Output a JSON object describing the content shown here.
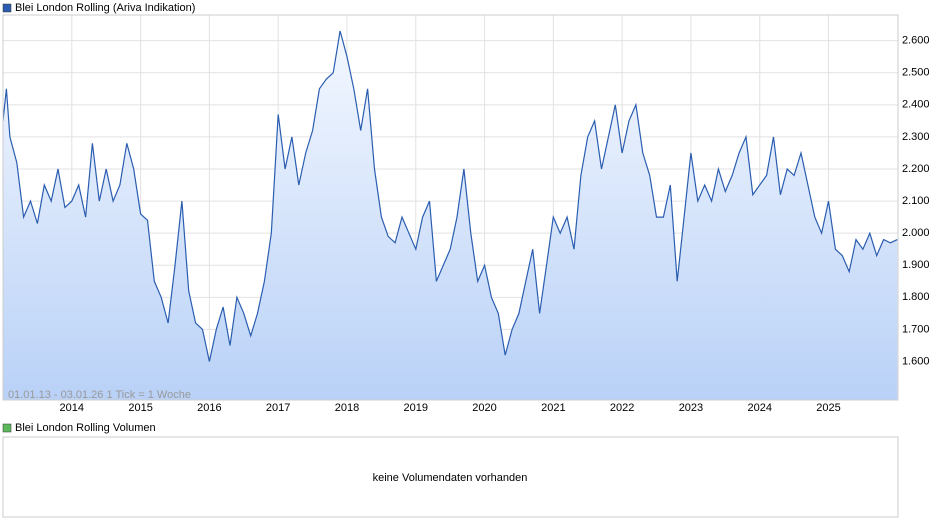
{
  "chart_data": {
    "type": "line",
    "title": "Blei London Rolling (Ariva Indikation)",
    "annotation": "01.01.13 - 03.01.26   1 Tick = 1 Woche",
    "volume_title": "Blei London Rolling Volumen",
    "volume_note": "keine Volumendaten vorhanden",
    "xlim": [
      2013,
      2026.01
    ],
    "xticks": [
      2014,
      2015,
      2016,
      2017,
      2018,
      2019,
      2020,
      2021,
      2022,
      2023,
      2024,
      2025
    ],
    "ylim": [
      1.48,
      2.68
    ],
    "yticks": [
      {
        "value": 1.6,
        "label": "1.600"
      },
      {
        "value": 1.7,
        "label": "1.700"
      },
      {
        "value": 1.8,
        "label": "1.800"
      },
      {
        "value": 1.9,
        "label": "1.900"
      },
      {
        "value": 2.0,
        "label": "2.000"
      },
      {
        "value": 2.1,
        "label": "2.100"
      },
      {
        "value": 2.2,
        "label": "2.200"
      },
      {
        "value": 2.3,
        "label": "2.300"
      },
      {
        "value": 2.4,
        "label": "2.400"
      },
      {
        "value": 2.5,
        "label": "2.500"
      },
      {
        "value": 2.6,
        "label": "2.600"
      }
    ],
    "grid": true,
    "series": [
      {
        "name": "Blei London Rolling (Ariva Indikation)",
        "color": "#2a5db0",
        "x": [
          2013.0,
          2013.05,
          2013.1,
          2013.2,
          2013.3,
          2013.4,
          2013.5,
          2013.6,
          2013.7,
          2013.8,
          2013.9,
          2014.0,
          2014.1,
          2014.2,
          2014.3,
          2014.4,
          2014.5,
          2014.6,
          2014.7,
          2014.8,
          2014.9,
          2015.0,
          2015.1,
          2015.2,
          2015.3,
          2015.4,
          2015.5,
          2015.6,
          2015.7,
          2015.8,
          2015.9,
          2016.0,
          2016.1,
          2016.2,
          2016.3,
          2016.4,
          2016.5,
          2016.6,
          2016.7,
          2016.8,
          2016.9,
          2017.0,
          2017.1,
          2017.2,
          2017.3,
          2017.4,
          2017.5,
          2017.6,
          2017.7,
          2017.8,
          2017.9,
          2018.0,
          2018.1,
          2018.2,
          2018.3,
          2018.4,
          2018.5,
          2018.6,
          2018.7,
          2018.8,
          2018.9,
          2019.0,
          2019.1,
          2019.2,
          2019.3,
          2019.4,
          2019.5,
          2019.6,
          2019.7,
          2019.8,
          2019.9,
          2020.0,
          2020.1,
          2020.2,
          2020.3,
          2020.4,
          2020.5,
          2020.6,
          2020.7,
          2020.8,
          2020.9,
          2021.0,
          2021.1,
          2021.2,
          2021.3,
          2021.4,
          2021.5,
          2021.6,
          2021.7,
          2021.8,
          2021.9,
          2022.0,
          2022.1,
          2022.2,
          2022.3,
          2022.4,
          2022.5,
          2022.6,
          2022.7,
          2022.8,
          2022.9,
          2023.0,
          2023.1,
          2023.2,
          2023.3,
          2023.4,
          2023.5,
          2023.6,
          2023.7,
          2023.8,
          2023.9,
          2024.0,
          2024.1,
          2024.2,
          2024.3,
          2024.4,
          2024.5,
          2024.6,
          2024.7,
          2024.8,
          2024.9,
          2025.0,
          2025.1,
          2025.2,
          2025.3,
          2025.4,
          2025.5,
          2025.6,
          2025.7,
          2025.8,
          2025.9,
          2026.0
        ],
        "values": [
          2.35,
          2.45,
          2.3,
          2.22,
          2.05,
          2.1,
          2.03,
          2.15,
          2.1,
          2.2,
          2.08,
          2.1,
          2.15,
          2.05,
          2.28,
          2.1,
          2.2,
          2.1,
          2.15,
          2.28,
          2.2,
          2.06,
          2.04,
          1.85,
          1.8,
          1.72,
          1.9,
          2.1,
          1.82,
          1.72,
          1.7,
          1.6,
          1.7,
          1.77,
          1.65,
          1.8,
          1.75,
          1.68,
          1.75,
          1.85,
          2.0,
          2.37,
          2.2,
          2.3,
          2.15,
          2.25,
          2.32,
          2.45,
          2.48,
          2.5,
          2.63,
          2.55,
          2.45,
          2.32,
          2.45,
          2.2,
          2.05,
          1.99,
          1.97,
          2.05,
          2.0,
          1.95,
          2.05,
          2.1,
          1.85,
          1.9,
          1.95,
          2.05,
          2.2,
          2.0,
          1.85,
          1.9,
          1.8,
          1.75,
          1.62,
          1.7,
          1.75,
          1.85,
          1.95,
          1.75,
          1.9,
          2.05,
          2.0,
          2.05,
          1.95,
          2.18,
          2.3,
          2.35,
          2.2,
          2.3,
          2.4,
          2.25,
          2.35,
          2.4,
          2.25,
          2.18,
          2.05,
          2.05,
          2.15,
          1.85,
          2.05,
          2.25,
          2.1,
          2.15,
          2.1,
          2.2,
          2.13,
          2.18,
          2.25,
          2.3,
          2.12,
          2.15,
          2.18,
          2.3,
          2.12,
          2.2,
          2.18,
          2.25,
          2.15,
          2.05,
          2.0,
          2.1,
          1.95,
          1.93,
          1.88,
          1.98,
          1.95,
          2.0,
          1.93,
          1.98,
          1.97,
          1.98
        ]
      }
    ]
  }
}
